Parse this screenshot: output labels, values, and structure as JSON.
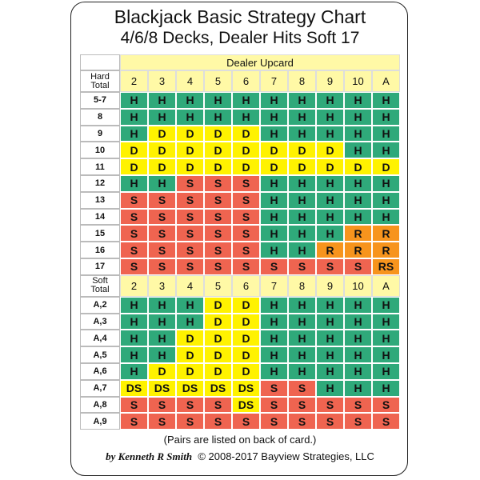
{
  "title": "Blackjack Basic Strategy Chart",
  "subtitle": "4/6/8 Decks, Dealer Hits Soft 17",
  "table": {
    "header": "Dealer Upcard",
    "upcards": [
      "2",
      "3",
      "4",
      "5",
      "6",
      "7",
      "8",
      "9",
      "10",
      "A"
    ],
    "sections": [
      {
        "label": "Hard Total",
        "rows": [
          {
            "hand": "5-7",
            "actions": [
              "H",
              "H",
              "H",
              "H",
              "H",
              "H",
              "H",
              "H",
              "H",
              "H"
            ]
          },
          {
            "hand": "8",
            "actions": [
              "H",
              "H",
              "H",
              "H",
              "H",
              "H",
              "H",
              "H",
              "H",
              "H"
            ]
          },
          {
            "hand": "9",
            "actions": [
              "H",
              "D",
              "D",
              "D",
              "D",
              "H",
              "H",
              "H",
              "H",
              "H"
            ]
          },
          {
            "hand": "10",
            "actions": [
              "D",
              "D",
              "D",
              "D",
              "D",
              "D",
              "D",
              "D",
              "H",
              "H"
            ]
          },
          {
            "hand": "11",
            "actions": [
              "D",
              "D",
              "D",
              "D",
              "D",
              "D",
              "D",
              "D",
              "D",
              "D"
            ]
          },
          {
            "hand": "12",
            "actions": [
              "H",
              "H",
              "S",
              "S",
              "S",
              "H",
              "H",
              "H",
              "H",
              "H"
            ]
          },
          {
            "hand": "13",
            "actions": [
              "S",
              "S",
              "S",
              "S",
              "S",
              "H",
              "H",
              "H",
              "H",
              "H"
            ]
          },
          {
            "hand": "14",
            "actions": [
              "S",
              "S",
              "S",
              "S",
              "S",
              "H",
              "H",
              "H",
              "H",
              "H"
            ]
          },
          {
            "hand": "15",
            "actions": [
              "S",
              "S",
              "S",
              "S",
              "S",
              "H",
              "H",
              "H",
              "R",
              "R"
            ]
          },
          {
            "hand": "16",
            "actions": [
              "S",
              "S",
              "S",
              "S",
              "S",
              "H",
              "H",
              "R",
              "R",
              "R"
            ]
          },
          {
            "hand": "17",
            "actions": [
              "S",
              "S",
              "S",
              "S",
              "S",
              "S",
              "S",
              "S",
              "S",
              "RS"
            ]
          }
        ]
      },
      {
        "label": "Soft Total",
        "rows": [
          {
            "hand": "A,2",
            "actions": [
              "H",
              "H",
              "H",
              "D",
              "D",
              "H",
              "H",
              "H",
              "H",
              "H"
            ]
          },
          {
            "hand": "A,3",
            "actions": [
              "H",
              "H",
              "H",
              "D",
              "D",
              "H",
              "H",
              "H",
              "H",
              "H"
            ]
          },
          {
            "hand": "A,4",
            "actions": [
              "H",
              "H",
              "D",
              "D",
              "D",
              "H",
              "H",
              "H",
              "H",
              "H"
            ]
          },
          {
            "hand": "A,5",
            "actions": [
              "H",
              "H",
              "D",
              "D",
              "D",
              "H",
              "H",
              "H",
              "H",
              "H"
            ]
          },
          {
            "hand": "A,6",
            "actions": [
              "H",
              "D",
              "D",
              "D",
              "D",
              "H",
              "H",
              "H",
              "H",
              "H"
            ]
          },
          {
            "hand": "A,7",
            "actions": [
              "DS",
              "DS",
              "DS",
              "DS",
              "DS",
              "S",
              "S",
              "H",
              "H",
              "H"
            ]
          },
          {
            "hand": "A,8",
            "actions": [
              "S",
              "S",
              "S",
              "S",
              "DS",
              "S",
              "S",
              "S",
              "S",
              "S"
            ]
          },
          {
            "hand": "A,9",
            "actions": [
              "S",
              "S",
              "S",
              "S",
              "S",
              "S",
              "S",
              "S",
              "S",
              "S"
            ]
          }
        ]
      }
    ]
  },
  "colors": {
    "H": "#2fa97a",
    "D": "#fff200",
    "S": "#ef6450",
    "R": "#f7941d",
    "RS": "#f7941d",
    "DS": "#fff200",
    "header": "#fff9a6"
  },
  "footer": {
    "note": "(Pairs are listed on back of card.)",
    "author": "by Kenneth R Smith",
    "copyright": "© 2008-2017 Bayview Strategies, LLC"
  }
}
